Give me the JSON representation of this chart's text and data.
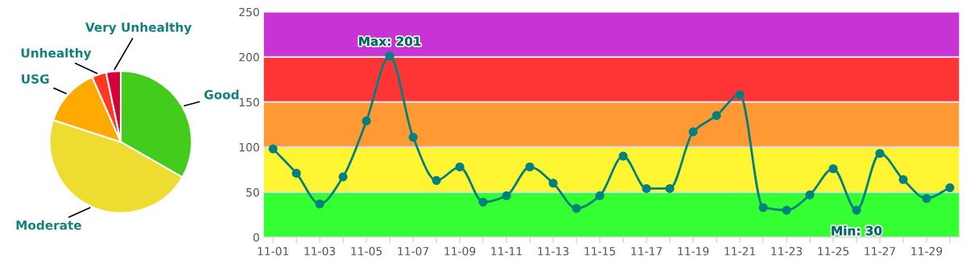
{
  "chart_data": [
    {
      "type": "pie",
      "categories": [
        "Good",
        "Moderate",
        "USG",
        "Unhealthy",
        "Very Unhealthy"
      ],
      "values": [
        33.3,
        46.7,
        13.4,
        3.3,
        3.3
      ],
      "colors": [
        "#44cc1c",
        "#eedc30",
        "#ffaa00",
        "#ff3a20",
        "#d8003a"
      ]
    },
    {
      "type": "line",
      "categories": [
        "11-01",
        null,
        "11-03",
        null,
        "11-05",
        null,
        "11-07",
        null,
        "11-09",
        null,
        "11-11",
        null,
        "11-13",
        null,
        "11-15",
        null,
        "11-17",
        null,
        "11-19",
        null,
        "11-21",
        null,
        "11-23",
        null,
        "11-25",
        null,
        "11-27",
        null,
        "11-29",
        null
      ],
      "series": [
        {
          "color": "#00807f",
          "values": [
            98,
            71,
            37,
            67,
            129,
            201,
            111,
            63,
            78,
            39,
            46,
            78,
            60,
            32,
            46,
            90,
            54,
            54,
            117,
            135,
            158,
            33,
            30,
            47,
            76,
            30,
            93,
            64,
            43,
            55
          ]
        }
      ],
      "marker": "circle",
      "ylim": [
        0,
        250
      ],
      "yticks": [
        0,
        50,
        100,
        150,
        200,
        250
      ],
      "grid": "y",
      "bands": [
        {
          "axis": "y",
          "from": 0,
          "to": 50,
          "color": "#33ff33"
        },
        {
          "axis": "y",
          "from": 50,
          "to": 100,
          "color": "#fff533"
        },
        {
          "axis": "y",
          "from": 100,
          "to": 150,
          "color": "#ff9933"
        },
        {
          "axis": "y",
          "from": 150,
          "to": 200,
          "color": "#ff3535"
        },
        {
          "axis": "y",
          "from": 200,
          "to": 250,
          "color": "#c833d6"
        }
      ],
      "annotations": [
        {
          "text": "Max: 201",
          "y": 201
        },
        {
          "text": "Min: 30",
          "y": 30
        }
      ]
    }
  ]
}
